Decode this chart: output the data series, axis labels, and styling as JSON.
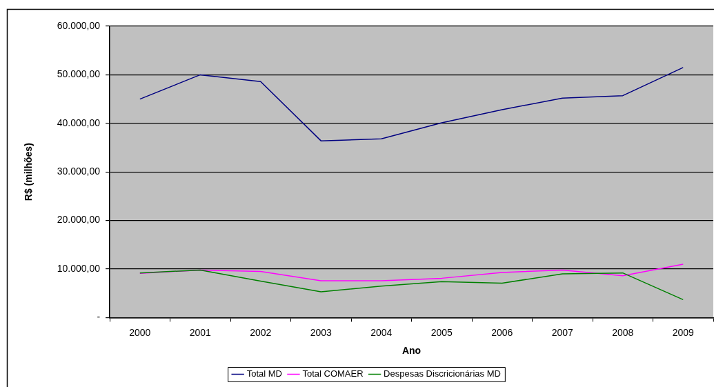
{
  "chart_data": {
    "type": "line",
    "xlabel": "Ano",
    "ylabel": "R$ (milhões)",
    "categories": [
      "2000",
      "2001",
      "2002",
      "2003",
      "2004",
      "2005",
      "2006",
      "2007",
      "2008",
      "2009"
    ],
    "series": [
      {
        "name": "Total MD",
        "color": "#000080",
        "values": [
          45000,
          50000,
          48600,
          36400,
          36800,
          40100,
          42800,
          45200,
          45700,
          51500
        ]
      },
      {
        "name": "Total COMAER",
        "color": "#ff00ff",
        "values": [
          9100,
          9800,
          9500,
          7600,
          7600,
          8100,
          9300,
          9800,
          8600,
          11000
        ]
      },
      {
        "name": "Despesas Discricionárias MD",
        "color": "#008000",
        "values": [
          9200,
          9800,
          7500,
          5300,
          6500,
          7400,
          7100,
          9000,
          9200,
          3700
        ]
      }
    ],
    "ylim": [
      0,
      60000
    ],
    "yticks": [
      {
        "value": 0,
        "label": "-"
      },
      {
        "value": 10000,
        "label": "10.000,00"
      },
      {
        "value": 20000,
        "label": "20.000,00"
      },
      {
        "value": 30000,
        "label": "30.000,00"
      },
      {
        "value": 40000,
        "label": "40.000,00"
      },
      {
        "value": 50000,
        "label": "50.000,00"
      },
      {
        "value": 60000,
        "label": "60.000,00"
      }
    ],
    "grid": "y",
    "legend": "bottom",
    "marker": "none",
    "line_style": "solid"
  }
}
